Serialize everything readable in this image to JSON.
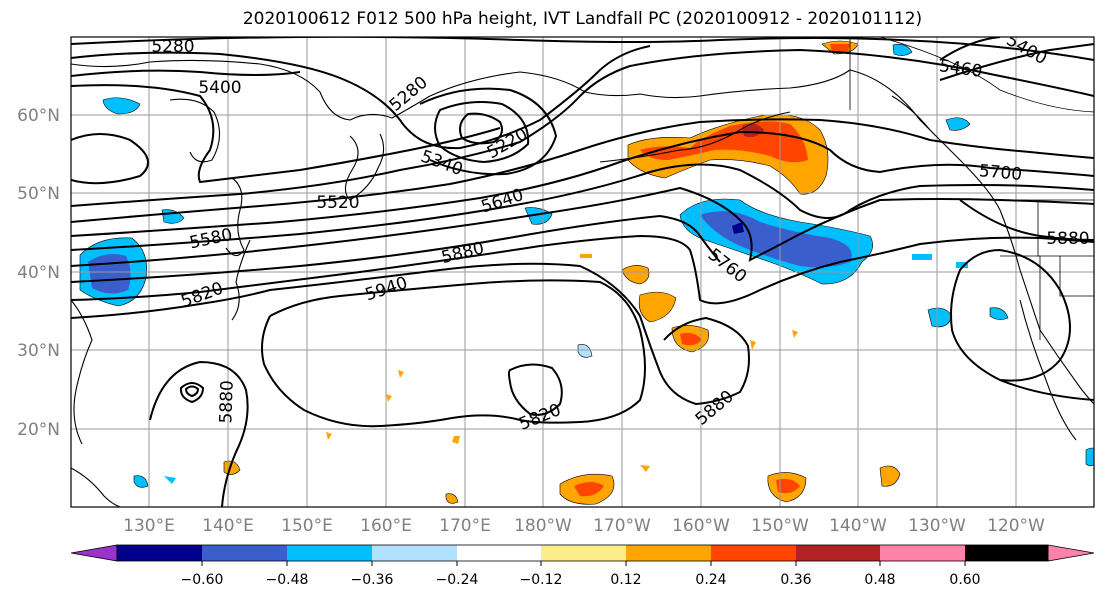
{
  "title": "2020100612 F012 500 hPa height, IVT Landfall PC (2020100912 - 2020101112)",
  "lat_labels": [
    "60°N",
    "50°N",
    "40°N",
    "30°N",
    "20°N"
  ],
  "lon_labels": [
    "130°E",
    "140°E",
    "150°E",
    "160°E",
    "170°E",
    "180°W",
    "170°W",
    "160°W",
    "150°W",
    "140°W",
    "130°W",
    "120°W"
  ],
  "contour_labels": [
    "5280",
    "5400",
    "5280",
    "5220",
    "5340",
    "5520",
    "5640",
    "5580",
    "5820",
    "5940",
    "5880",
    "5760",
    "5700",
    "5460",
    "5400",
    "5880",
    "5880",
    "5820",
    "5880"
  ],
  "colorbar": {
    "ticks": [
      "−0.60",
      "−0.48",
      "−0.36",
      "−0.24",
      "−0.12",
      "0.12",
      "0.24",
      "0.36",
      "0.48",
      "0.60"
    ],
    "colors": [
      "#9933cc",
      "#00008b",
      "#3a5fcd",
      "#00bfff",
      "#b0e2ff",
      "#ffffff",
      "#ffec8b",
      "#ffa500",
      "#ff4500",
      "#b22222",
      "#ff82ab"
    ]
  }
}
